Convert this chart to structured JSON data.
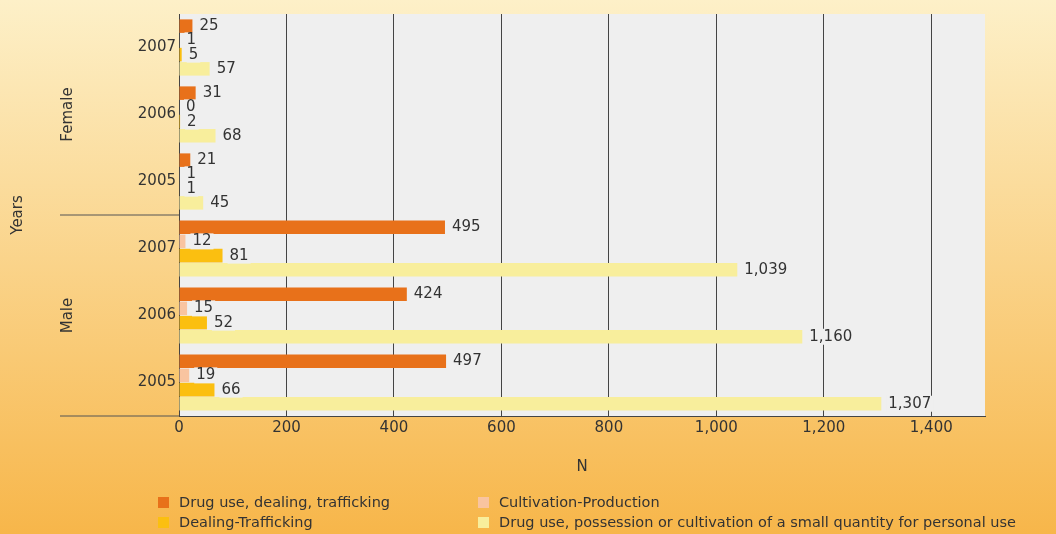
{
  "chart_data": {
    "type": "bar",
    "orientation": "horizontal",
    "xlabel": "N",
    "categories": [
      "2007",
      "2006",
      "2005",
      "2007",
      "2006",
      "2005"
    ],
    "series": [
      {
        "name": "Drug use, dealing, trafficking",
        "color": "#e8711a",
        "values": [
          25,
          31,
          21,
          495,
          424,
          497
        ],
        "value_labels": [
          "25",
          "31",
          "21",
          "495",
          "424",
          "497"
        ]
      },
      {
        "name": "Cultivation-Production",
        "color": "#f9c4a0",
        "values": [
          1,
          0,
          1,
          12,
          15,
          19
        ],
        "value_labels": [
          "1",
          "0",
          "1",
          "12",
          "15",
          "19"
        ]
      },
      {
        "name": "Dealing-Trafficking",
        "color": "#fbbf10",
        "values": [
          5,
          2,
          1,
          81,
          52,
          66
        ],
        "value_labels": [
          "5",
          "2",
          "1",
          "81",
          "52",
          "66"
        ]
      },
      {
        "name": "Drug use, possession or cultivation of a small quantity for personal use",
        "color": "#f8ee9c",
        "values": [
          57,
          68,
          45,
          1039,
          1160,
          1307
        ],
        "value_labels": [
          "57",
          "68",
          "45",
          "1,039",
          "1,160",
          "1,307"
        ]
      }
    ],
    "annotations": [
      "Years",
      "Female",
      "Male"
    ],
    "xlim": [
      0,
      1500
    ],
    "xticks": [
      0,
      {
        "value": 200,
        "label": "200"
      },
      {
        "value": 400,
        "label": "400"
      },
      {
        "value": 600,
        "label": "600"
      },
      {
        "value": 800,
        "label": "800"
      },
      {
        "value": 1000,
        "label": "1,000"
      },
      {
        "value": 1200,
        "label": "1,200"
      },
      {
        "value": 1400,
        "label": "1,400"
      }
    ],
    "grid": "x",
    "legend": "bottom"
  }
}
